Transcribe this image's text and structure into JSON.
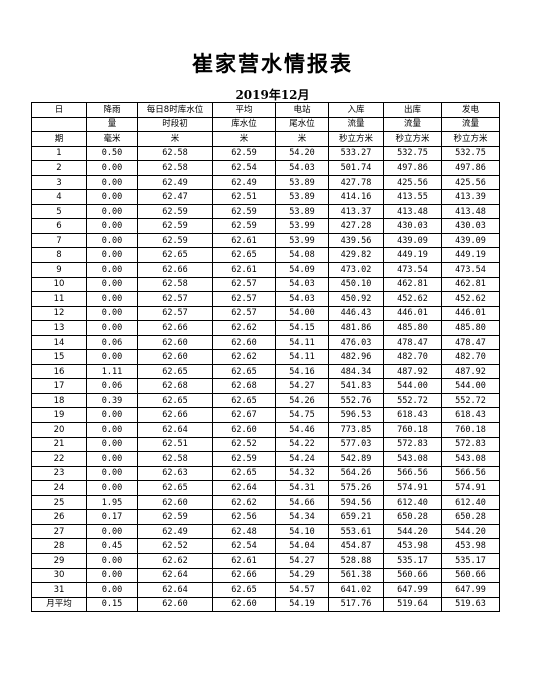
{
  "title": "崔家营水情报表",
  "subtitle": "2019年12月",
  "header_rows": [
    [
      "日",
      "降雨",
      "每日8时库水位",
      "平均",
      "电站",
      "入库",
      "出库",
      "发电"
    ],
    [
      "",
      "量",
      "时段初",
      "库水位",
      "尾水位",
      "流量",
      "流量",
      "流量"
    ],
    [
      "期",
      "毫米",
      "米",
      "米",
      "米",
      "秒立方米",
      "秒立方米",
      "秒立方米"
    ]
  ],
  "rows": [
    [
      "1",
      "0.50",
      "62.58",
      "62.59",
      "54.20",
      "533.27",
      "532.75",
      "532.75"
    ],
    [
      "2",
      "0.00",
      "62.58",
      "62.54",
      "54.03",
      "501.74",
      "497.86",
      "497.86"
    ],
    [
      "3",
      "0.00",
      "62.49",
      "62.49",
      "53.89",
      "427.78",
      "425.56",
      "425.56"
    ],
    [
      "4",
      "0.00",
      "62.47",
      "62.51",
      "53.89",
      "414.16",
      "413.55",
      "413.39"
    ],
    [
      "5",
      "0.00",
      "62.59",
      "62.59",
      "53.89",
      "413.37",
      "413.48",
      "413.48"
    ],
    [
      "6",
      "0.00",
      "62.59",
      "62.59",
      "53.99",
      "427.28",
      "430.03",
      "430.03"
    ],
    [
      "7",
      "0.00",
      "62.59",
      "62.61",
      "53.99",
      "439.56",
      "439.09",
      "439.09"
    ],
    [
      "8",
      "0.00",
      "62.65",
      "62.65",
      "54.08",
      "429.82",
      "449.19",
      "449.19"
    ],
    [
      "9",
      "0.00",
      "62.66",
      "62.61",
      "54.09",
      "473.02",
      "473.54",
      "473.54"
    ],
    [
      "10",
      "0.00",
      "62.58",
      "62.57",
      "54.03",
      "450.10",
      "462.81",
      "462.81"
    ],
    [
      "11",
      "0.00",
      "62.57",
      "62.57",
      "54.03",
      "450.92",
      "452.62",
      "452.62"
    ],
    [
      "12",
      "0.00",
      "62.57",
      "62.57",
      "54.00",
      "446.43",
      "446.01",
      "446.01"
    ],
    [
      "13",
      "0.00",
      "62.66",
      "62.62",
      "54.15",
      "481.86",
      "485.80",
      "485.80"
    ],
    [
      "14",
      "0.06",
      "62.60",
      "62.60",
      "54.11",
      "476.03",
      "478.47",
      "478.47"
    ],
    [
      "15",
      "0.00",
      "62.60",
      "62.62",
      "54.11",
      "482.96",
      "482.70",
      "482.70"
    ],
    [
      "16",
      "1.11",
      "62.65",
      "62.65",
      "54.16",
      "484.34",
      "487.92",
      "487.92"
    ],
    [
      "17",
      "0.06",
      "62.68",
      "62.68",
      "54.27",
      "541.83",
      "544.00",
      "544.00"
    ],
    [
      "18",
      "0.39",
      "62.65",
      "62.65",
      "54.26",
      "552.76",
      "552.72",
      "552.72"
    ],
    [
      "19",
      "0.00",
      "62.66",
      "62.67",
      "54.75",
      "596.53",
      "618.43",
      "618.43"
    ],
    [
      "20",
      "0.00",
      "62.64",
      "62.60",
      "54.46",
      "773.85",
      "760.18",
      "760.18"
    ],
    [
      "21",
      "0.00",
      "62.51",
      "62.52",
      "54.22",
      "577.03",
      "572.83",
      "572.83"
    ],
    [
      "22",
      "0.00",
      "62.58",
      "62.59",
      "54.24",
      "542.89",
      "543.08",
      "543.08"
    ],
    [
      "23",
      "0.00",
      "62.63",
      "62.65",
      "54.32",
      "564.26",
      "566.56",
      "566.56"
    ],
    [
      "24",
      "0.00",
      "62.65",
      "62.64",
      "54.31",
      "575.26",
      "574.91",
      "574.91"
    ],
    [
      "25",
      "1.95",
      "62.60",
      "62.62",
      "54.66",
      "594.56",
      "612.40",
      "612.40"
    ],
    [
      "26",
      "0.17",
      "62.59",
      "62.56",
      "54.34",
      "659.21",
      "650.28",
      "650.28"
    ],
    [
      "27",
      "0.00",
      "62.49",
      "62.48",
      "54.10",
      "553.61",
      "544.20",
      "544.20"
    ],
    [
      "28",
      "0.45",
      "62.52",
      "62.54",
      "54.04",
      "454.87",
      "453.98",
      "453.98"
    ],
    [
      "29",
      "0.00",
      "62.62",
      "62.61",
      "54.27",
      "528.88",
      "535.17",
      "535.17"
    ],
    [
      "30",
      "0.00",
      "62.64",
      "62.66",
      "54.29",
      "561.38",
      "560.66",
      "560.66"
    ],
    [
      "31",
      "0.00",
      "62.64",
      "62.65",
      "54.57",
      "641.02",
      "647.99",
      "647.99"
    ]
  ],
  "footer_row": [
    "月平均",
    "0.15",
    "62.60",
    "62.60",
    "54.19",
    "517.76",
    "519.64",
    "519.63"
  ]
}
